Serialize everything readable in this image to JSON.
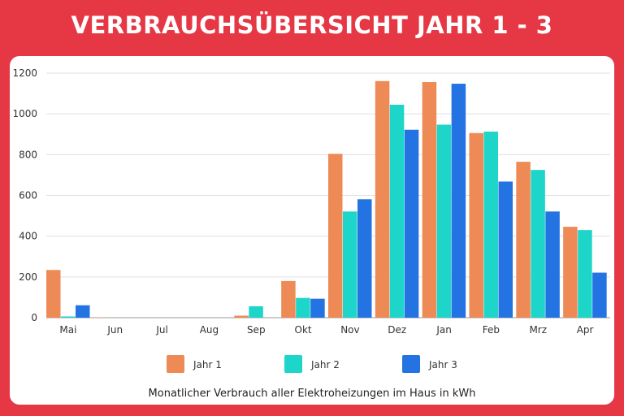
{
  "title": "VERBRAUCHSÜBERSICHT JAHR 1 - 3",
  "chart_data": {
    "type": "bar",
    "title": "VERBRAUCHSÜBERSICHT JAHR 1 - 3",
    "xlabel": "Monatlicher Verbrauch aller Elektroheizungen im Haus in kWh",
    "ylabel": "",
    "ylim": [
      0,
      1200
    ],
    "yticks": [
      0,
      200,
      400,
      600,
      800,
      1000,
      1200
    ],
    "grid": true,
    "legend_position": "bottom",
    "categories": [
      "Mai",
      "Jun",
      "Jul",
      "Aug",
      "Sep",
      "Okt",
      "Nov",
      "Dez",
      "Jan",
      "Feb",
      "Mrz",
      "Apr"
    ],
    "series": [
      {
        "name": "Jahr 1",
        "color": "#ee8a55",
        "values": [
          234,
          2,
          0,
          0,
          10,
          180,
          804,
          1161,
          1156,
          906,
          765,
          446
        ]
      },
      {
        "name": "Jahr 2",
        "color": "#1dd5c8",
        "values": [
          6,
          0,
          0,
          0,
          56,
          97,
          521,
          1045,
          947,
          913,
          725,
          430
        ]
      },
      {
        "name": "Jahr 3",
        "color": "#2473e3",
        "values": [
          61,
          0,
          0,
          0,
          0,
          93,
          581,
          922,
          1148,
          668,
          521,
          221
        ]
      }
    ]
  },
  "colors": {
    "background": "#e63745",
    "card": "#ffffff"
  }
}
